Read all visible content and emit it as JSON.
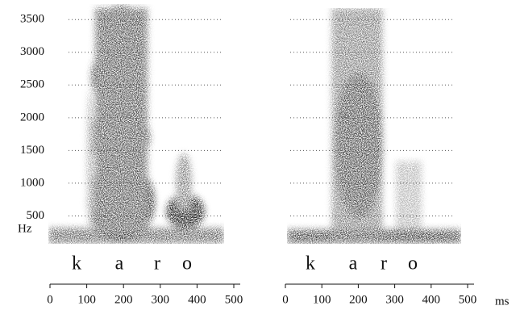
{
  "chart_data": [
    {
      "type": "spectrogram",
      "ylabel": "Hz",
      "ylim": [
        0,
        3700
      ],
      "yticks": [
        500,
        1000,
        1500,
        2000,
        2500,
        3000,
        3500
      ],
      "grid": true,
      "xlim": [
        0,
        500
      ],
      "xticks": [
        0,
        100,
        200,
        300,
        400,
        500
      ],
      "segments": [
        "k",
        "a",
        "r",
        "o"
      ]
    },
    {
      "type": "spectrogram",
      "ylim": [
        0,
        3700
      ],
      "grid": true,
      "xlim": [
        0,
        500
      ],
      "xticks": [
        0,
        100,
        200,
        300,
        400,
        500
      ],
      "segments": [
        "k",
        "a",
        "r",
        "o"
      ],
      "xlabel": "ms"
    }
  ]
}
